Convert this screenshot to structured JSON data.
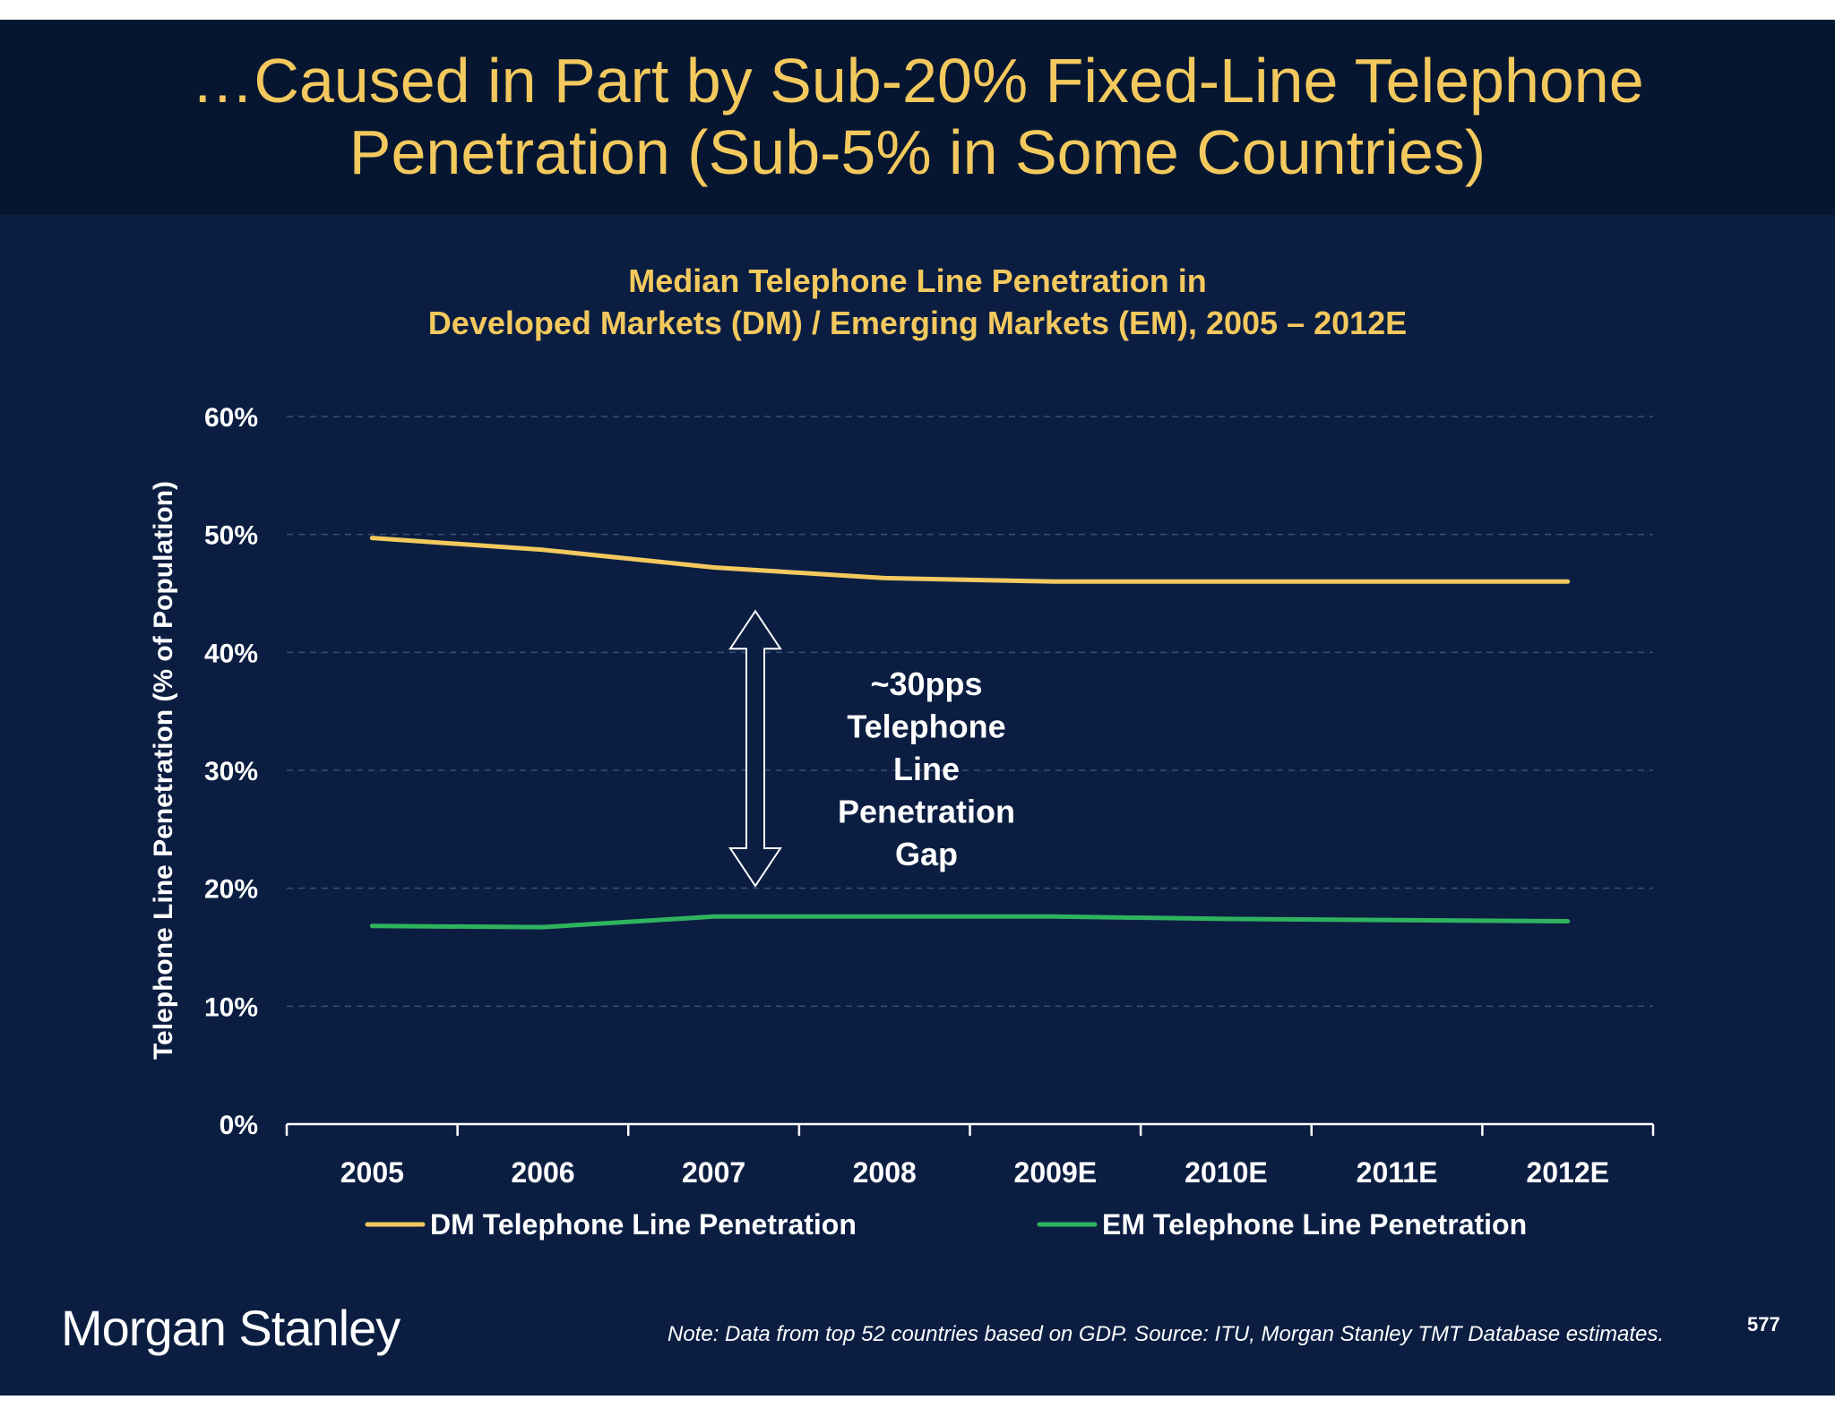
{
  "slide": {
    "title_line1": "…Caused in Part by Sub-20% Fixed-Line Telephone",
    "title_line2": "Penetration (Sub-5% in Some Countries)",
    "logo_text": "Morgan Stanley",
    "note": "Note: Data from top 52 countries based on GDP. Source: ITU, Morgan Stanley TMT Database estimates.",
    "page_number": "577"
  },
  "colors": {
    "background": "#0b1e42",
    "header": "#061631",
    "dm_line": "#f3c95e",
    "em_line": "#2fb35f",
    "text": "#ffffff",
    "title": "#f3c95e"
  },
  "chart_data": {
    "type": "line",
    "title_line1": "Median Telephone Line Penetration in",
    "title_line2": "Developed Markets (DM) / Emerging Markets (EM), 2005 – 2012E",
    "xlabel": "",
    "ylabel": "Telephone Line Penetration (% of Population)",
    "categories": [
      "2005",
      "2006",
      "2007",
      "2008",
      "2009E",
      "2010E",
      "2011E",
      "2012E"
    ],
    "ylim": [
      0,
      60
    ],
    "yticks": [
      "0%",
      "10%",
      "20%",
      "30%",
      "40%",
      "50%",
      "60%"
    ],
    "grid": true,
    "legend_position": "bottom",
    "series": [
      {
        "name": "DM Telephone Line Penetration",
        "values": [
          49.7,
          48.7,
          47.2,
          46.3,
          46.0,
          46.0,
          46.0,
          46.0
        ]
      },
      {
        "name": "EM Telephone Line Penetration",
        "values": [
          16.8,
          16.7,
          17.6,
          17.6,
          17.6,
          17.4,
          17.3,
          17.2
        ]
      }
    ],
    "annotation": {
      "lines": [
        "~30pps",
        "Telephone",
        "Line",
        "Penetration",
        "Gap"
      ],
      "arrow_from": 43.5,
      "arrow_to": 20.2
    }
  }
}
